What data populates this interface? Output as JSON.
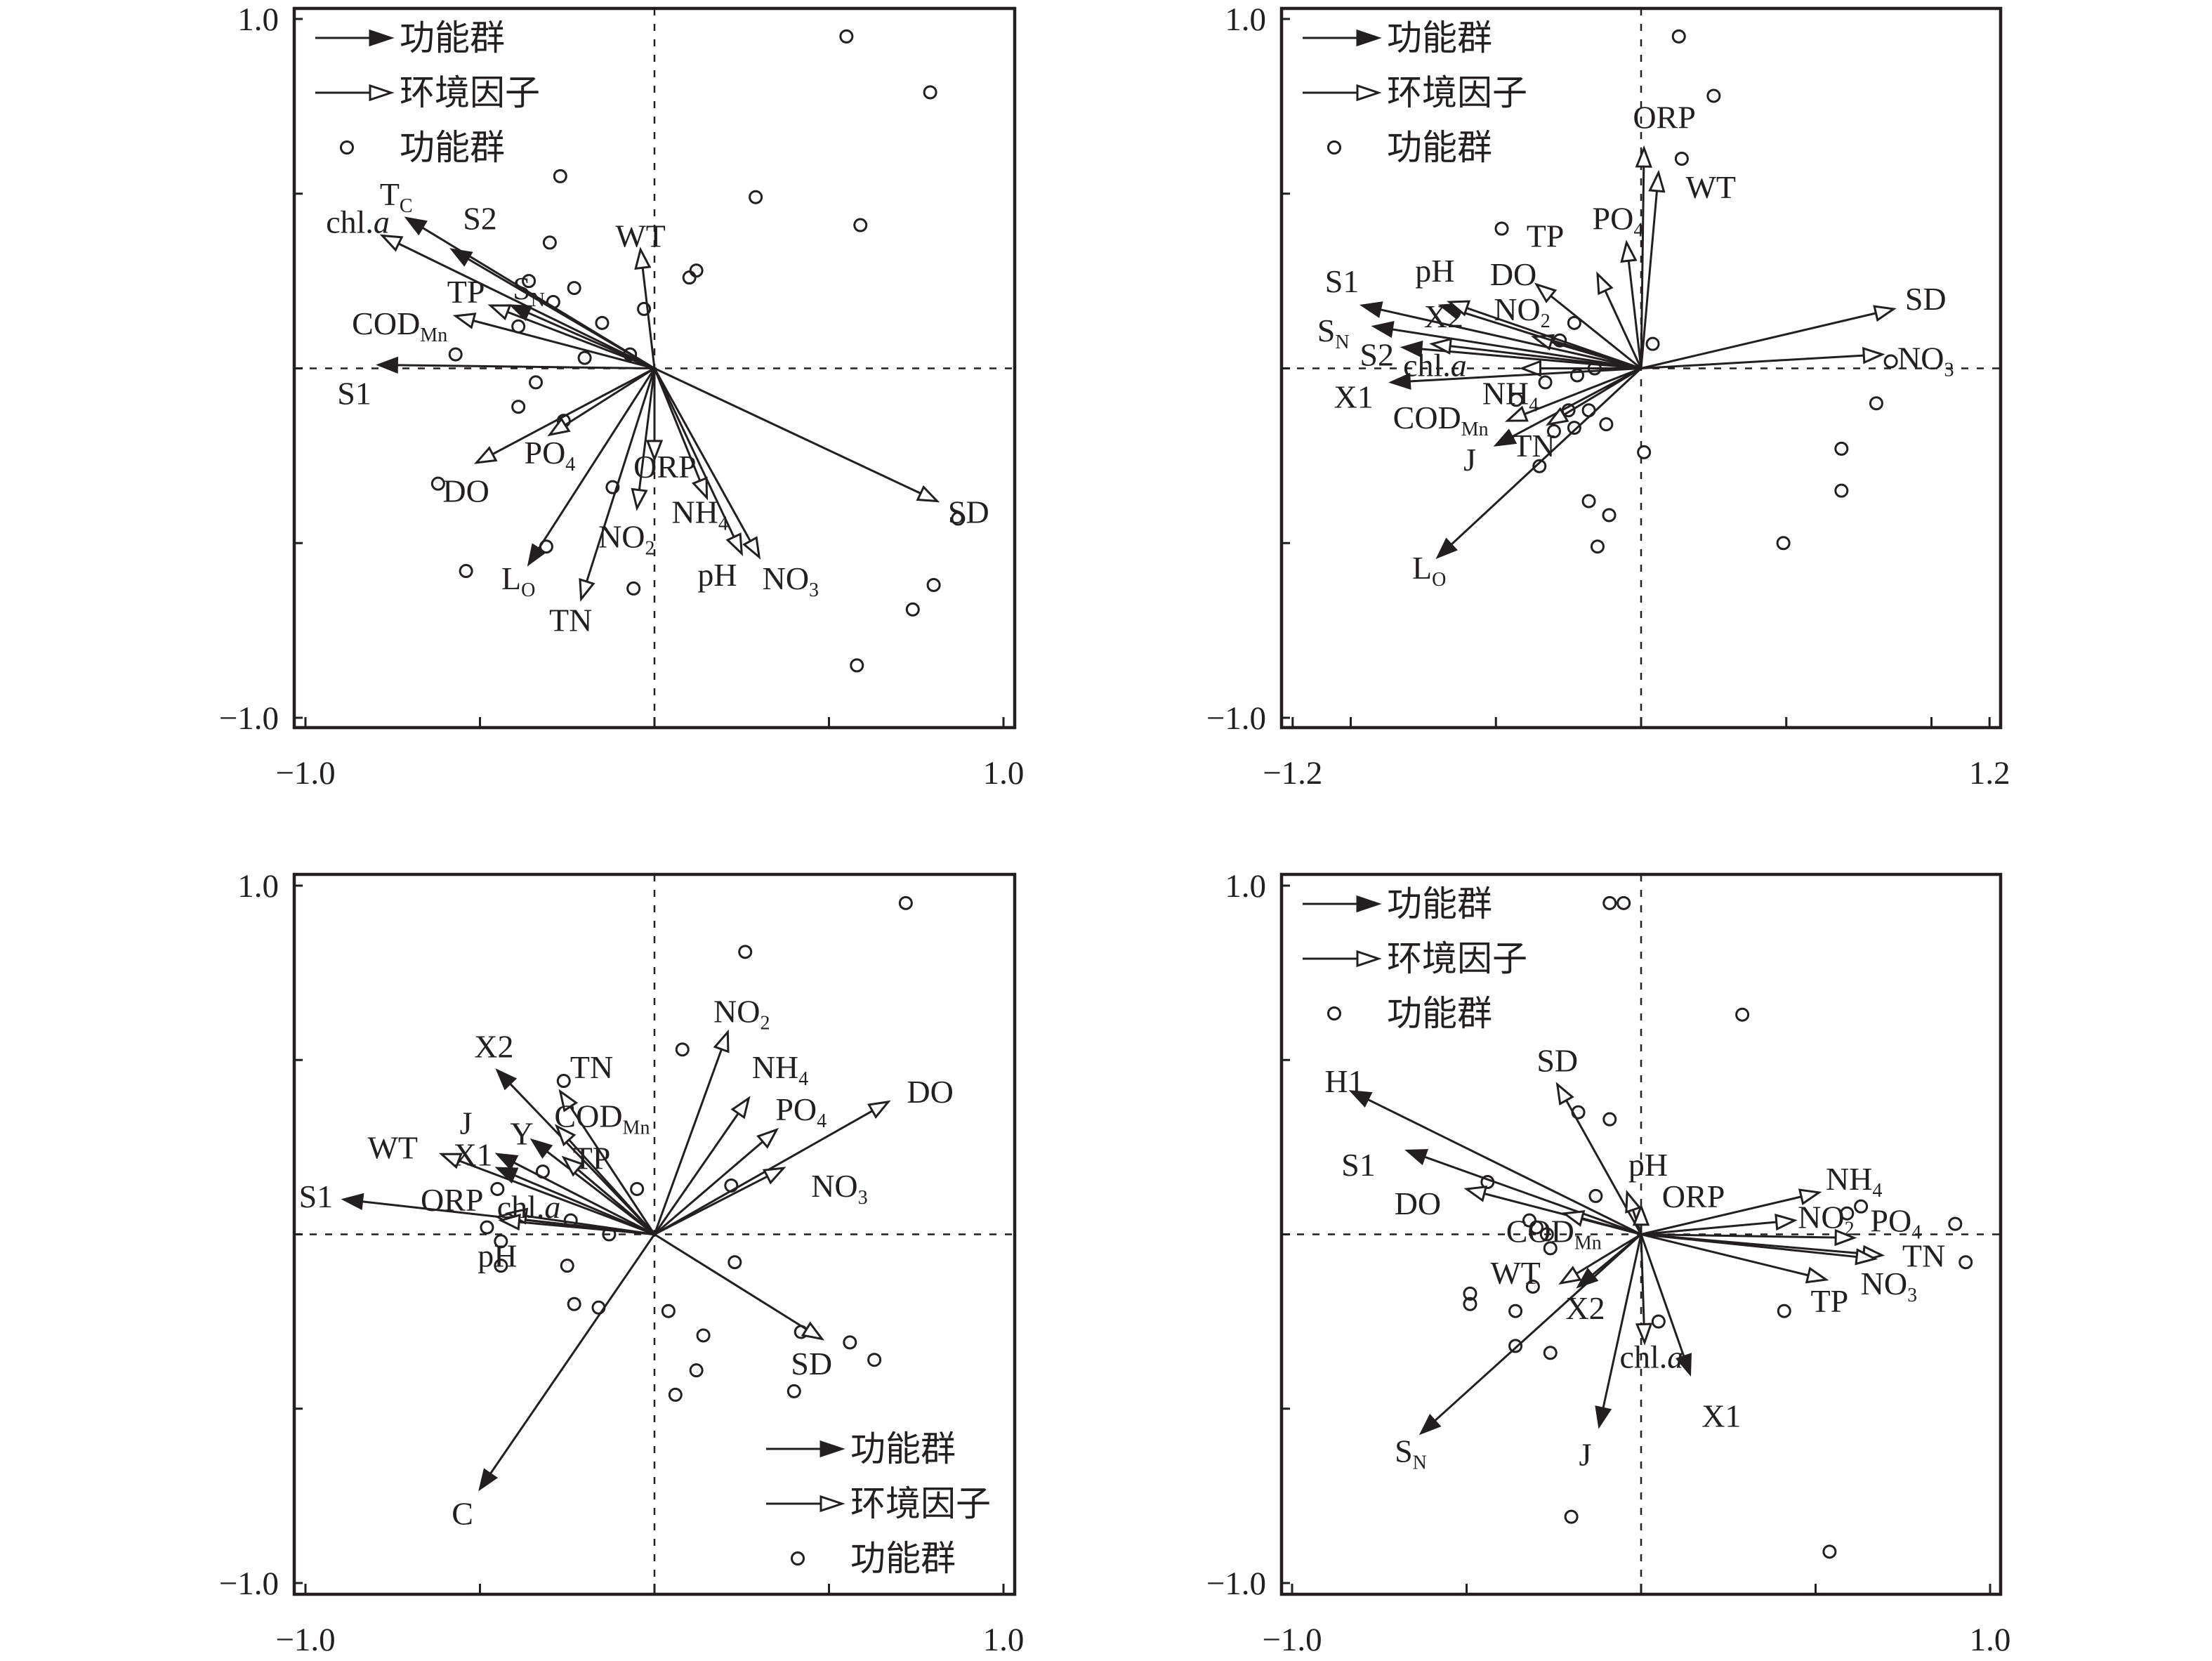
{
  "chart_data": [
    {
      "type": "scatter",
      "subtype": "ordination-biplot",
      "panel": "top-left",
      "xlim": [
        -1.0,
        1.0
      ],
      "ylim": [
        -1.0,
        1.0
      ],
      "x_tick_labels": [
        "−1.0",
        "1.0"
      ],
      "y_tick_labels": [
        "1.0",
        "−1.0"
      ],
      "legend": {
        "placement": "top-left",
        "entries": [
          {
            "symbol": "filled-arrow",
            "label": "功能群"
          },
          {
            "symbol": "open-arrow",
            "label": "环境因子"
          },
          {
            "symbol": "circle",
            "label": "功能群"
          }
        ]
      },
      "arrows": [
        {
          "label": "T",
          "sub": "C",
          "kind": "group",
          "x": -0.71,
          "y": 0.43
        },
        {
          "label": "S2",
          "sub": "",
          "kind": "group",
          "x": -0.58,
          "y": 0.34
        },
        {
          "label": "chl.",
          "italic": "a",
          "sub": "",
          "kind": "env",
          "x": -0.78,
          "y": 0.38
        },
        {
          "label": "S",
          "sub": "N",
          "kind": "group",
          "x": -0.41,
          "y": 0.18
        },
        {
          "label": "TP",
          "sub": "",
          "kind": "env",
          "x": -0.47,
          "y": 0.18
        },
        {
          "label": "COD",
          "sub": "Mn",
          "kind": "env",
          "x": -0.57,
          "y": 0.15
        },
        {
          "label": "S1",
          "sub": "",
          "kind": "group",
          "x": -0.79,
          "y": 0.01
        },
        {
          "label": "WT",
          "sub": "",
          "kind": "env",
          "x": -0.04,
          "y": 0.34
        },
        {
          "label": "SD",
          "sub": "",
          "kind": "env",
          "x": 0.81,
          "y": -0.38
        },
        {
          "label": "NO",
          "sub": "3",
          "kind": "env",
          "x": 0.3,
          "y": -0.54
        },
        {
          "label": "pH",
          "sub": "",
          "kind": "env",
          "x": 0.25,
          "y": -0.53
        },
        {
          "label": "NH",
          "sub": "4",
          "kind": "env",
          "x": 0.15,
          "y": -0.37
        },
        {
          "label": "ORP",
          "sub": "",
          "kind": "env",
          "x": 0.0,
          "y": -0.26
        },
        {
          "label": "NO",
          "sub": "2",
          "kind": "env",
          "x": -0.05,
          "y": -0.4
        },
        {
          "label": "TN",
          "sub": "",
          "kind": "env",
          "x": -0.21,
          "y": -0.66
        },
        {
          "label": "L",
          "sub": "O",
          "kind": "group",
          "x": -0.36,
          "y": -0.56
        },
        {
          "label": "PO",
          "sub": "4",
          "kind": "env",
          "x": -0.3,
          "y": -0.19
        },
        {
          "label": "DO",
          "sub": "",
          "kind": "env",
          "x": -0.51,
          "y": -0.27
        }
      ],
      "points": [
        [
          0.55,
          0.95
        ],
        [
          0.79,
          0.79
        ],
        [
          0.29,
          0.49
        ],
        [
          0.59,
          0.41
        ],
        [
          -0.27,
          0.55
        ],
        [
          -0.3,
          0.36
        ],
        [
          0.12,
          0.28
        ],
        [
          0.1,
          0.26
        ],
        [
          -0.03,
          0.17
        ],
        [
          -0.23,
          0.23
        ],
        [
          -0.36,
          0.25
        ],
        [
          -0.29,
          0.19
        ],
        [
          -0.15,
          0.13
        ],
        [
          -0.39,
          0.12
        ],
        [
          -0.07,
          0.04
        ],
        [
          -0.2,
          0.03
        ],
        [
          -0.57,
          0.04
        ],
        [
          -0.34,
          -0.04
        ],
        [
          -0.39,
          -0.11
        ],
        [
          -0.26,
          -0.15
        ],
        [
          -0.62,
          -0.33
        ],
        [
          -0.12,
          -0.34
        ],
        [
          -0.31,
          -0.51
        ],
        [
          -0.54,
          -0.58
        ],
        [
          -0.06,
          -0.63
        ],
        [
          0.87,
          -0.43
        ],
        [
          0.8,
          -0.62
        ],
        [
          0.74,
          -0.69
        ],
        [
          0.58,
          -0.85
        ]
      ]
    },
    {
      "type": "scatter",
      "subtype": "ordination-biplot",
      "panel": "top-right",
      "xlim": [
        -1.2,
        1.2
      ],
      "ylim": [
        -1.0,
        1.0
      ],
      "x_tick_labels": [
        "−1.2",
        "1.2"
      ],
      "y_tick_labels": [
        "1.0",
        "−1.0"
      ],
      "legend": {
        "placement": "top-left",
        "entries": [
          {
            "symbol": "filled-arrow",
            "label": "功能群"
          },
          {
            "symbol": "open-arrow",
            "label": "环境因子"
          },
          {
            "symbol": "circle",
            "label": "功能群"
          }
        ]
      },
      "arrows": [
        {
          "label": "ORP",
          "sub": "",
          "kind": "env",
          "x": 0.01,
          "y": 0.63
        },
        {
          "label": "WT",
          "sub": "",
          "kind": "env",
          "x": 0.06,
          "y": 0.56
        },
        {
          "label": "PO",
          "sub": "4",
          "kind": "env",
          "x": -0.05,
          "y": 0.36
        },
        {
          "label": "TP",
          "sub": "",
          "kind": "env",
          "x": -0.15,
          "y": 0.27
        },
        {
          "label": "DO",
          "sub": "",
          "kind": "env",
          "x": -0.36,
          "y": 0.24
        },
        {
          "label": "NO",
          "sub": "2",
          "kind": "env",
          "x": -0.37,
          "y": 0.09
        },
        {
          "label": "X2",
          "sub": "",
          "kind": "group",
          "x": -0.69,
          "y": 0.18
        },
        {
          "label": "pH",
          "sub": "",
          "kind": "env",
          "x": -0.66,
          "y": 0.19
        },
        {
          "label": "S1",
          "sub": "",
          "kind": "group",
          "x": -0.96,
          "y": 0.18
        },
        {
          "label": "S",
          "sub": "N",
          "kind": "group",
          "x": -0.92,
          "y": 0.12
        },
        {
          "label": "S2",
          "sub": "",
          "kind": "group",
          "x": -0.82,
          "y": 0.06
        },
        {
          "label": "chl.",
          "italic": "a",
          "sub": "",
          "kind": "env",
          "x": -0.72,
          "y": 0.07
        },
        {
          "label": "NH",
          "sub": "4",
          "kind": "env",
          "x": -0.41,
          "y": 0.0
        },
        {
          "label": "X1",
          "sub": "",
          "kind": "group",
          "x": -0.86,
          "y": -0.04
        },
        {
          "label": "COD",
          "sub": "Mn",
          "kind": "env",
          "x": -0.46,
          "y": -0.15
        },
        {
          "label": "J",
          "sub": "",
          "kind": "group",
          "x": -0.5,
          "y": -0.22
        },
        {
          "label": "TN",
          "sub": "",
          "kind": "env",
          "x": -0.32,
          "y": -0.16
        },
        {
          "label": "L",
          "sub": "O",
          "kind": "group",
          "x": -0.7,
          "y": -0.54
        },
        {
          "label": "SD",
          "sub": "",
          "kind": "env",
          "x": 0.87,
          "y": 0.17
        },
        {
          "label": "NO",
          "sub": "3",
          "kind": "env",
          "x": 0.83,
          "y": 0.04
        }
      ],
      "points": [
        [
          0.13,
          0.95
        ],
        [
          0.25,
          0.78
        ],
        [
          0.14,
          0.6
        ],
        [
          -0.48,
          0.4
        ],
        [
          -0.23,
          0.13
        ],
        [
          -0.28,
          0.08
        ],
        [
          0.04,
          0.07
        ],
        [
          -0.16,
          0.0
        ],
        [
          -0.22,
          -0.02
        ],
        [
          -0.33,
          -0.04
        ],
        [
          -0.43,
          -0.09
        ],
        [
          -0.25,
          -0.12
        ],
        [
          -0.18,
          -0.12
        ],
        [
          -0.12,
          -0.16
        ],
        [
          -0.3,
          -0.18
        ],
        [
          -0.23,
          -0.17
        ],
        [
          -0.35,
          -0.28
        ],
        [
          0.01,
          -0.24
        ],
        [
          0.86,
          0.02
        ],
        [
          0.81,
          -0.1
        ],
        [
          0.69,
          -0.23
        ],
        [
          0.69,
          -0.35
        ],
        [
          0.49,
          -0.5
        ],
        [
          -0.18,
          -0.38
        ],
        [
          -0.11,
          -0.42
        ],
        [
          -0.15,
          -0.51
        ]
      ]
    },
    {
      "type": "scatter",
      "subtype": "ordination-biplot",
      "panel": "bottom-left",
      "xlim": [
        -1.0,
        1.0
      ],
      "ylim": [
        -1.0,
        1.0
      ],
      "x_tick_labels": [
        "−1.0",
        "1.0"
      ],
      "y_tick_labels": [
        "1.0",
        "−1.0"
      ],
      "legend": {
        "placement": "bottom-right",
        "entries": [
          {
            "symbol": "filled-arrow",
            "label": "功能群"
          },
          {
            "symbol": "open-arrow",
            "label": "环境因子"
          },
          {
            "symbol": "circle",
            "label": "功能群"
          }
        ]
      },
      "arrows": [
        {
          "label": "NO",
          "sub": "2",
          "kind": "env",
          "x": 0.21,
          "y": 0.58
        },
        {
          "label": "NH",
          "sub": "4",
          "kind": "env",
          "x": 0.27,
          "y": 0.39
        },
        {
          "label": "PO",
          "sub": "4",
          "kind": "env",
          "x": 0.35,
          "y": 0.3
        },
        {
          "label": "DO",
          "sub": "",
          "kind": "env",
          "x": 0.67,
          "y": 0.38
        },
        {
          "label": "NO",
          "sub": "3",
          "kind": "env",
          "x": 0.37,
          "y": 0.19
        },
        {
          "label": "SD",
          "sub": "",
          "kind": "env",
          "x": 0.48,
          "y": -0.3
        },
        {
          "label": "C",
          "sub": "",
          "kind": "group",
          "x": -0.5,
          "y": -0.73
        },
        {
          "label": "X2",
          "sub": "",
          "kind": "group",
          "x": -0.45,
          "y": 0.47
        },
        {
          "label": "TN",
          "sub": "",
          "kind": "env",
          "x": -0.27,
          "y": 0.41
        },
        {
          "label": "COD",
          "sub": "Mn",
          "kind": "env",
          "x": -0.28,
          "y": 0.31
        },
        {
          "label": "J",
          "sub": "",
          "kind": "group",
          "x": -0.45,
          "y": 0.19
        },
        {
          "label": "Y",
          "sub": "",
          "kind": "group",
          "x": -0.35,
          "y": 0.27
        },
        {
          "label": "TP",
          "sub": "",
          "kind": "env",
          "x": -0.26,
          "y": 0.22
        },
        {
          "label": "WT",
          "sub": "",
          "kind": "env",
          "x": -0.61,
          "y": 0.23
        },
        {
          "label": "X1",
          "sub": "",
          "kind": "group",
          "x": -0.45,
          "y": 0.23
        },
        {
          "label": "S1",
          "sub": "",
          "kind": "group",
          "x": -0.89,
          "y": 0.1
        },
        {
          "label": "ORP",
          "sub": "",
          "kind": "env",
          "x": -0.45,
          "y": 0.05
        },
        {
          "label": "chl.",
          "italic": "a",
          "sub": "",
          "kind": "env",
          "x": -0.42,
          "y": 0.06
        },
        {
          "label": "pH",
          "sub": "",
          "kind": "env",
          "x": -0.44,
          "y": 0.04
        }
      ],
      "points": [
        [
          0.72,
          0.95
        ],
        [
          0.26,
          0.81
        ],
        [
          0.08,
          0.53
        ],
        [
          -0.26,
          0.44
        ],
        [
          -0.32,
          0.18
        ],
        [
          -0.05,
          0.13
        ],
        [
          0.22,
          0.14
        ],
        [
          -0.45,
          0.13
        ],
        [
          -0.24,
          0.04
        ],
        [
          -0.13,
          0.0
        ],
        [
          -0.48,
          0.02
        ],
        [
          -0.44,
          -0.02
        ],
        [
          -0.44,
          -0.09
        ],
        [
          -0.25,
          -0.09
        ],
        [
          0.23,
          -0.08
        ],
        [
          -0.23,
          -0.2
        ],
        [
          -0.16,
          -0.21
        ],
        [
          0.04,
          -0.22
        ],
        [
          0.14,
          -0.29
        ],
        [
          0.42,
          -0.28
        ],
        [
          0.56,
          -0.31
        ],
        [
          0.63,
          -0.36
        ],
        [
          0.12,
          -0.39
        ],
        [
          0.4,
          -0.45
        ],
        [
          0.06,
          -0.46
        ]
      ]
    },
    {
      "type": "scatter",
      "subtype": "ordination-biplot",
      "panel": "bottom-right",
      "xlim": [
        -1.0,
        1.0
      ],
      "ylim": [
        -1.0,
        1.0
      ],
      "x_tick_labels": [
        "−1.0",
        "1.0"
      ],
      "y_tick_labels": [
        "1.0",
        "−1.0"
      ],
      "legend": {
        "placement": "top-left",
        "entries": [
          {
            "symbol": "filled-arrow",
            "label": "功能群"
          },
          {
            "symbol": "open-arrow",
            "label": "环境因子"
          },
          {
            "symbol": "circle",
            "label": "功能群"
          }
        ]
      },
      "arrows": [
        {
          "label": "H1",
          "sub": "",
          "kind": "group",
          "x": -0.83,
          "y": 0.41
        },
        {
          "label": "S1",
          "sub": "",
          "kind": "group",
          "x": -0.67,
          "y": 0.24
        },
        {
          "label": "DO",
          "sub": "",
          "kind": "env",
          "x": -0.5,
          "y": 0.13
        },
        {
          "label": "COD",
          "sub": "Mn",
          "kind": "env",
          "x": -0.22,
          "y": 0.06
        },
        {
          "label": "SD",
          "sub": "",
          "kind": "env",
          "x": -0.24,
          "y": 0.43
        },
        {
          "label": "pH",
          "sub": "",
          "kind": "env",
          "x": -0.04,
          "y": 0.12
        },
        {
          "label": "ORP",
          "sub": "",
          "kind": "env",
          "x": 0.0,
          "y": 0.08
        },
        {
          "label": "NH",
          "sub": "4",
          "kind": "env",
          "x": 0.51,
          "y": 0.12
        },
        {
          "label": "NO",
          "sub": "2",
          "kind": "env",
          "x": 0.44,
          "y": 0.04
        },
        {
          "label": "PO",
          "sub": "4",
          "kind": "env",
          "x": 0.61,
          "y": -0.01
        },
        {
          "label": "TN",
          "sub": "",
          "kind": "env",
          "x": 0.69,
          "y": -0.06
        },
        {
          "label": "NO",
          "sub": "3",
          "kind": "env",
          "x": 0.67,
          "y": -0.07
        },
        {
          "label": "TP",
          "sub": "",
          "kind": "env",
          "x": 0.53,
          "y": -0.13
        },
        {
          "label": "WT",
          "sub": "",
          "kind": "env",
          "x": -0.23,
          "y": -0.14
        },
        {
          "label": "X2",
          "sub": "",
          "kind": "group",
          "x": -0.18,
          "y": -0.15
        },
        {
          "label": "S",
          "sub": "N",
          "kind": "group",
          "x": -0.63,
          "y": -0.57
        },
        {
          "label": "J",
          "sub": "",
          "kind": "group",
          "x": -0.12,
          "y": -0.55
        },
        {
          "label": "chl.",
          "italic": "a",
          "sub": "",
          "kind": "env",
          "x": 0.01,
          "y": -0.31
        },
        {
          "label": "X1",
          "sub": "",
          "kind": "group",
          "x": 0.14,
          "y": -0.4
        }
      ],
      "points": [
        [
          -0.09,
          0.95
        ],
        [
          -0.05,
          0.95
        ],
        [
          0.29,
          0.63
        ],
        [
          -0.18,
          0.35
        ],
        [
          -0.09,
          0.33
        ],
        [
          -0.44,
          0.15
        ],
        [
          -0.13,
          0.11
        ],
        [
          -0.32,
          0.04
        ],
        [
          -0.3,
          0.02
        ],
        [
          -0.27,
          0.0
        ],
        [
          -0.26,
          -0.04
        ],
        [
          -0.31,
          -0.15
        ],
        [
          -0.49,
          -0.17
        ],
        [
          -0.49,
          -0.2
        ],
        [
          -0.36,
          -0.22
        ],
        [
          0.05,
          -0.25
        ],
        [
          -0.36,
          -0.32
        ],
        [
          -0.26,
          -0.34
        ],
        [
          0.41,
          -0.22
        ],
        [
          0.59,
          0.06
        ],
        [
          0.63,
          0.08
        ],
        [
          0.9,
          0.03
        ],
        [
          0.93,
          -0.08
        ],
        [
          -0.2,
          -0.81
        ],
        [
          0.54,
          -0.91
        ]
      ]
    }
  ]
}
